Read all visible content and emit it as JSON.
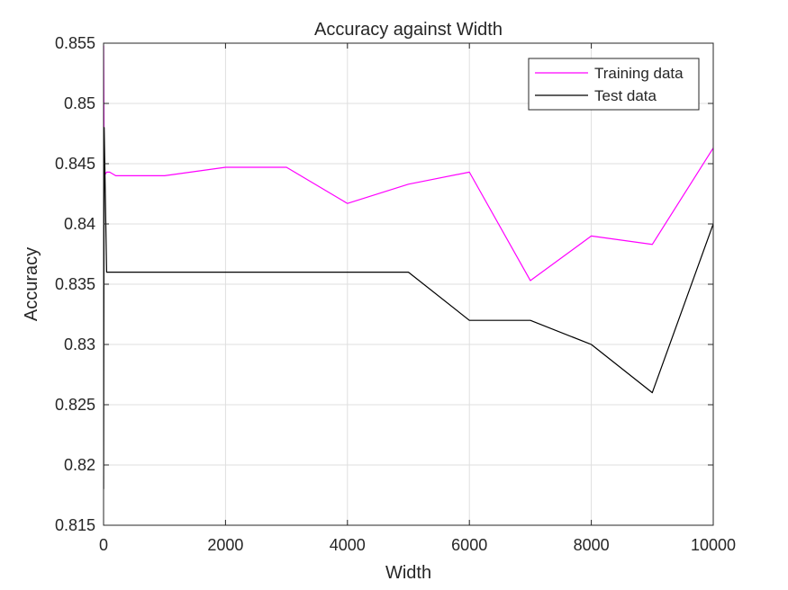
{
  "chart_data": {
    "type": "line",
    "title": "Accuracy against Width",
    "xlabel": "Width",
    "ylabel": "Accuracy",
    "xlim": [
      0,
      10000
    ],
    "ylim": [
      0.815,
      0.855
    ],
    "xticks": [
      0,
      2000,
      4000,
      6000,
      8000,
      10000
    ],
    "xtick_labels": [
      "0",
      "2000",
      "4000",
      "6000",
      "8000",
      "10000"
    ],
    "yticks": [
      0.815,
      0.82,
      0.825,
      0.83,
      0.835,
      0.84,
      0.845,
      0.85,
      0.855
    ],
    "ytick_labels": [
      "0.815",
      "0.82",
      "0.825",
      "0.83",
      "0.835",
      "0.84",
      "0.845",
      "0.85",
      "0.855"
    ],
    "grid": true,
    "legend_position": "top-right",
    "series": [
      {
        "name": "Training data",
        "color": "#ff00ff",
        "x": [
          1,
          10,
          50,
          100,
          200,
          1000,
          2000,
          3000,
          4000,
          5000,
          6000,
          7000,
          8000,
          9000,
          10000
        ],
        "y": [
          0.8548,
          0.844,
          0.8443,
          0.8443,
          0.844,
          0.844,
          0.8447,
          0.8447,
          0.8417,
          0.8433,
          0.8443,
          0.8353,
          0.839,
          0.8383,
          0.8463
        ]
      },
      {
        "name": "Test data",
        "color": "#000000",
        "x": [
          1,
          10,
          50,
          100,
          200,
          1000,
          2000,
          3000,
          4000,
          5000,
          6000,
          7000,
          8000,
          9000,
          10000
        ],
        "y": [
          0.818,
          0.848,
          0.836,
          0.836,
          0.836,
          0.836,
          0.836,
          0.836,
          0.836,
          0.836,
          0.832,
          0.832,
          0.83,
          0.826,
          0.84
        ]
      }
    ]
  }
}
